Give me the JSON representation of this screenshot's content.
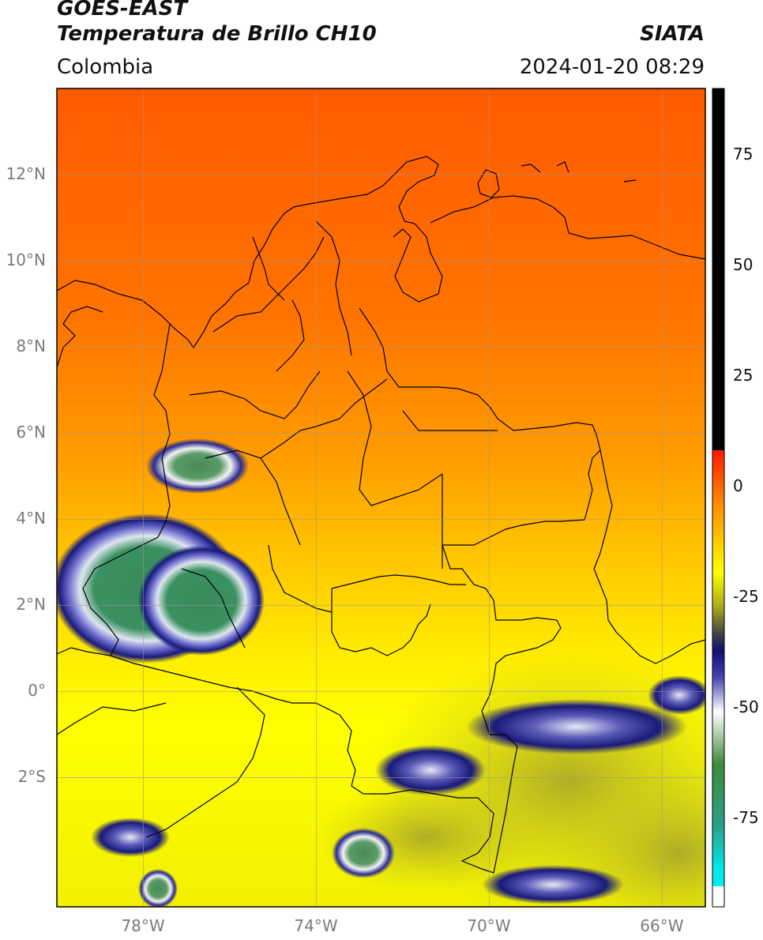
{
  "header": {
    "title_line1": "GOES-EAST",
    "title_line2": "Temperatura de Brillo CH10",
    "brand": "SIATA",
    "region": "Colombia",
    "timestamp": "2024-01-20 08:29"
  },
  "map": {
    "lat_ticks": [
      {
        "value": 12,
        "label": "12°N"
      },
      {
        "value": 10,
        "label": "10°N"
      },
      {
        "value": 8,
        "label": "8°N"
      },
      {
        "value": 6,
        "label": "6°N"
      },
      {
        "value": 4,
        "label": "4°N"
      },
      {
        "value": 2,
        "label": "2°N"
      },
      {
        "value": 0,
        "label": "0°"
      },
      {
        "value": -2,
        "label": "2°S"
      }
    ],
    "lon_ticks": [
      {
        "value": -78,
        "label": "78°W"
      },
      {
        "value": -74,
        "label": "74°W"
      },
      {
        "value": -70,
        "label": "70°W"
      },
      {
        "value": -66,
        "label": "66°W"
      }
    ],
    "lon_range": [
      -80,
      -65
    ],
    "lat_range": [
      -5,
      14
    ],
    "colors": {
      "warm_top": "#ff5a00",
      "mid": "#ff9a00",
      "yellow": "#ffff00",
      "olive": "#b5b31e",
      "navy": "#1a1a7a",
      "green": "#3a8a55",
      "gridline": "#999999"
    }
  },
  "colorbar": {
    "ticks": [
      "75",
      "50",
      "25",
      "0",
      "-25",
      "-50",
      "-75"
    ],
    "range": [
      -95,
      90
    ]
  }
}
